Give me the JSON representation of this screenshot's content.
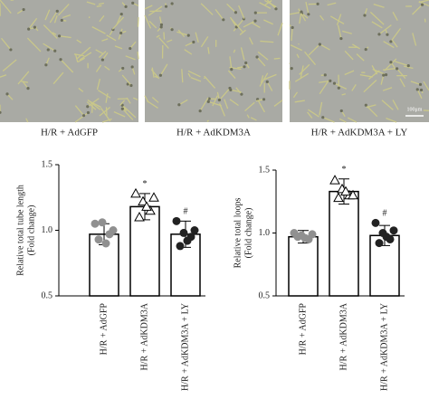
{
  "images": {
    "panels": [
      {
        "label": "H/R + AdGFP"
      },
      {
        "label": "H/R + AdKDM3A"
      },
      {
        "label": "H/R + AdKDM3A + LY",
        "scale_bar": "100μm"
      }
    ]
  },
  "chart_data": [
    {
      "type": "bar",
      "ylabel": [
        "Relative total tube length",
        "(Fold change)"
      ],
      "categories": [
        "H/R + AdGFP",
        "H/R + AdKDM3A",
        "H/R + AdKDM3A + LY"
      ],
      "values": [
        0.97,
        1.18,
        0.97
      ],
      "errors": [
        0.08,
        0.1,
        0.1
      ],
      "points": [
        [
          1.05,
          1.06,
          0.97,
          0.93,
          0.9,
          1.0
        ],
        [
          1.28,
          1.22,
          1.15,
          1.1,
          1.18,
          1.25
        ],
        [
          1.07,
          0.98,
          0.95,
          0.88,
          0.92,
          1.0
        ]
      ],
      "markers": [
        "circle",
        "triangle",
        "circle"
      ],
      "marker_colors": [
        "#909090",
        "#ffffff",
        "#222222"
      ],
      "annotations": [
        {
          "category": "H/R + AdKDM3A",
          "text": "*"
        },
        {
          "category": "H/R + AdKDM3A + LY",
          "text": "#"
        }
      ],
      "ylim": [
        0.5,
        1.5
      ],
      "yticks": [
        0.5,
        {
          "value": 1,
          "label": "1.0"
        },
        1.5
      ]
    },
    {
      "type": "bar",
      "ylabel": [
        "Relative total loops",
        "(Fold change)"
      ],
      "categories": [
        "H/R + AdGFP",
        "H/R + AdKDM3A",
        "H/R + AdKDM3A + LY"
      ],
      "values": [
        0.97,
        1.33,
        0.98
      ],
      "errors": [
        0.05,
        0.1,
        0.08
      ],
      "points": [
        [
          1.0,
          0.98,
          0.95,
          0.97,
          0.96,
          0.99
        ],
        [
          1.42,
          1.35,
          1.3,
          1.28,
          1.33,
          1.3
        ],
        [
          1.08,
          1.0,
          0.95,
          0.92,
          0.97,
          1.02
        ]
      ],
      "markers": [
        "circle",
        "triangle",
        "circle"
      ],
      "marker_colors": [
        "#909090",
        "#ffffff",
        "#222222"
      ],
      "annotations": [
        {
          "category": "H/R + AdKDM3A",
          "text": "*"
        },
        {
          "category": "H/R + AdKDM3A + LY",
          "text": "#"
        }
      ],
      "ylim": [
        0.5,
        1.5
      ],
      "yticks": [
        0.5,
        {
          "value": 1,
          "label": "1.0"
        },
        1.5
      ]
    }
  ]
}
